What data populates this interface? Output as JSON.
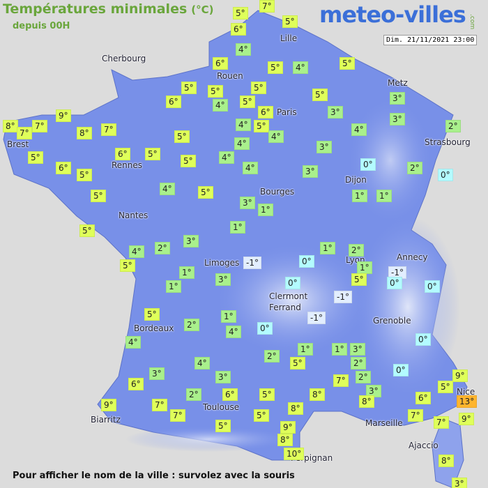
{
  "header": {
    "title": "Températures minimales",
    "unit": "(°C)",
    "subtitle": "depuis 00H",
    "logo": "meteo-villes",
    "logo_suffix": ".com",
    "datetime": "Dim. 21/11/2021 23:00"
  },
  "footer": "Pour afficher le nom de la ville : survolez avec la souris",
  "cities": [
    "Lille",
    "Cherbourg",
    "Rouen",
    "Paris",
    "Metz",
    "Brest",
    "Strasbourg",
    "Rennes",
    "Dijon",
    "Bourges",
    "Nantes",
    "Limoges",
    "Annecy",
    "Lyon",
    "Clermont",
    "Ferrand",
    "Grenoble",
    "Bordeaux",
    "Toulouse",
    "Biarritz",
    "Marseille",
    "Nice",
    "Perpignan",
    "Ajaccio"
  ],
  "temperatures": [
    "5°",
    "7°",
    "6°",
    "5°",
    "4°",
    "6°",
    "5°",
    "4°",
    "5°",
    "5°",
    "5°",
    "5°",
    "6°",
    "4°",
    "5°",
    "5°",
    "6°",
    "3°",
    "3°",
    "3°",
    "9°",
    "8°",
    "7°",
    "7°",
    "8°",
    "7°",
    "4°",
    "5°",
    "4°",
    "4°",
    "2°",
    "5°",
    "4°",
    "5°",
    "6°",
    "5°",
    "5°",
    "4°",
    "3°",
    "4°",
    "6°",
    "5°",
    "0°",
    "2°",
    "3°",
    "0°",
    "4°",
    "5°",
    "5°",
    "3°",
    "1°",
    "1°",
    "1°",
    "5°",
    "1°",
    "4°",
    "2°",
    "3°",
    "5°",
    "1°",
    "2°",
    "-1°",
    "0°",
    "1°",
    "-1°",
    "1°",
    "0°",
    "5°",
    "0°",
    "1°",
    "3°",
    "0°",
    "-1°",
    "5°",
    "-1°",
    "1°",
    "0°",
    "4°",
    "2°",
    "4°",
    "0°",
    "1°",
    "1°",
    "3°",
    "2°",
    "5°",
    "4°",
    "2°",
    "3°",
    "0°",
    "9°",
    "6°",
    "3°",
    "7°",
    "2°",
    "5°",
    "3°",
    "2°",
    "6°",
    "5°",
    "8°",
    "8°",
    "6°",
    "13°",
    "9°",
    "7°",
    "7°",
    "8°",
    "5°",
    "7°",
    "9°",
    "5°",
    "7°",
    "9°",
    "8°",
    "10°",
    "8°",
    "3°"
  ]
}
